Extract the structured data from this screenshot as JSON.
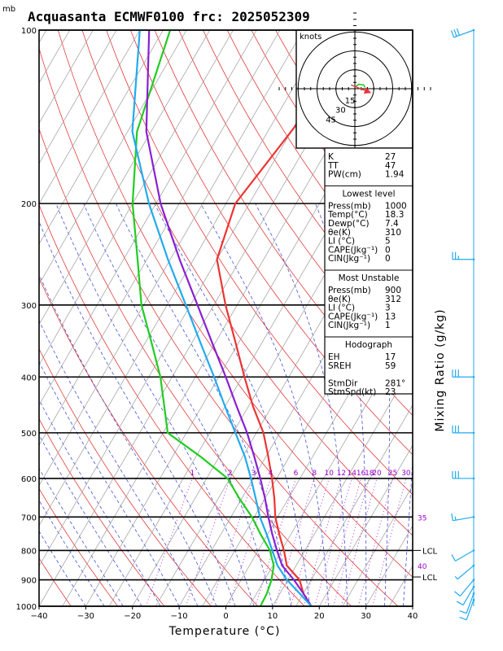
{
  "title": "Acquasanta ECMWF0100  frc: 2025052309",
  "chart_data": {
    "type": "line",
    "title": "Acquasanta ECMWF0100  frc: 2025052309",
    "pressure_unit": "mb",
    "xlabel": "Temperature (°C)",
    "right_label": "Mixing Ratio (g/kg)",
    "xlim": [
      -40,
      40
    ],
    "ylim": [
      1000,
      100
    ],
    "y_log": true,
    "x_ticks": [
      -40,
      -30,
      -20,
      -10,
      0,
      10,
      20,
      30,
      40
    ],
    "y_ticks": [
      100,
      200,
      300,
      400,
      500,
      600,
      700,
      800,
      900,
      1000
    ],
    "y_tick_labels": [
      "100",
      "200",
      "300",
      "400",
      "500",
      "600",
      "700",
      "800",
      "900",
      "1000"
    ],
    "mixing_ratio_labels": [
      "1",
      "2",
      "3",
      "4",
      "6",
      "8",
      "10",
      "12",
      "14",
      "16",
      "18",
      "20",
      "25",
      "30"
    ],
    "mixing_ratio_side_labels": [
      "35",
      "40"
    ],
    "lcl_labels": [
      "LCL",
      "LCL"
    ],
    "series": [
      {
        "color": "#ee3333",
        "points": [
          [
            1000,
            18.3
          ],
          [
            950,
            15.0
          ],
          [
            900,
            12.5
          ],
          [
            850,
            8.0
          ],
          [
            800,
            5.5
          ],
          [
            750,
            2.5
          ],
          [
            700,
            -0.5
          ],
          [
            650,
            -3.0
          ],
          [
            600,
            -6.0
          ],
          [
            550,
            -9.5
          ],
          [
            500,
            -13.5
          ],
          [
            450,
            -19.0
          ],
          [
            400,
            -24.5
          ],
          [
            350,
            -30.5
          ],
          [
            300,
            -37.5
          ],
          [
            250,
            -45.0
          ],
          [
            200,
            -48.0
          ],
          [
            150,
            -45.0
          ],
          [
            100,
            -41.0
          ]
        ]
      },
      {
        "color": "#22cc22",
        "points": [
          [
            1000,
            7.4
          ],
          [
            950,
            7.2
          ],
          [
            900,
            6.5
          ],
          [
            850,
            5.2
          ],
          [
            800,
            2.5
          ],
          [
            750,
            -1.5
          ],
          [
            700,
            -5.5
          ],
          [
            650,
            -10.5
          ],
          [
            600,
            -15.5
          ],
          [
            550,
            -24.0
          ],
          [
            500,
            -34.0
          ],
          [
            450,
            -38.0
          ],
          [
            400,
            -42.5
          ],
          [
            350,
            -48.5
          ],
          [
            300,
            -55.5
          ],
          [
            250,
            -62.0
          ],
          [
            200,
            -70.0
          ],
          [
            150,
            -78.0
          ],
          [
            100,
            -83.5
          ]
        ]
      },
      {
        "color": "#8a1fd1",
        "points": [
          [
            1000,
            18.3
          ],
          [
            950,
            15.0
          ],
          [
            900,
            11.3
          ],
          [
            850,
            7.0
          ],
          [
            800,
            4.0
          ],
          [
            750,
            1.0
          ],
          [
            700,
            -2.0
          ],
          [
            650,
            -5.0
          ],
          [
            600,
            -8.5
          ],
          [
            550,
            -12.5
          ],
          [
            500,
            -17.0
          ],
          [
            450,
            -22.5
          ],
          [
            400,
            -28.5
          ],
          [
            350,
            -35.5
          ],
          [
            300,
            -43.5
          ],
          [
            250,
            -53.0
          ],
          [
            200,
            -64.0
          ],
          [
            150,
            -76.0
          ],
          [
            100,
            -88.0
          ]
        ]
      },
      {
        "color": "#22aaee",
        "points": [
          [
            1000,
            18.3
          ],
          [
            950,
            14.2
          ],
          [
            900,
            9.8
          ],
          [
            850,
            6.0
          ],
          [
            800,
            3.0
          ],
          [
            750,
            -0.2
          ],
          [
            700,
            -3.8
          ],
          [
            650,
            -7.0
          ],
          [
            600,
            -10.5
          ],
          [
            550,
            -14.5
          ],
          [
            500,
            -19.5
          ],
          [
            450,
            -25.0
          ],
          [
            400,
            -31.0
          ],
          [
            350,
            -38.0
          ],
          [
            300,
            -46.0
          ],
          [
            250,
            -55.5
          ],
          [
            200,
            -66.5
          ],
          [
            150,
            -79.0
          ],
          [
            100,
            -90.0
          ]
        ]
      }
    ],
    "wind_barbs": [
      {
        "p": 100,
        "dir": 250,
        "speed": 30
      },
      {
        "p": 250,
        "dir": 270,
        "speed": 25
      },
      {
        "p": 400,
        "dir": 270,
        "speed": 30
      },
      {
        "p": 500,
        "dir": 270,
        "speed": 30
      },
      {
        "p": 600,
        "dir": 270,
        "speed": 30
      },
      {
        "p": 700,
        "dir": 260,
        "speed": 15
      },
      {
        "p": 800,
        "dir": 240,
        "speed": 10
      },
      {
        "p": 850,
        "dir": 230,
        "speed": 5
      },
      {
        "p": 900,
        "dir": 220,
        "speed": 10
      },
      {
        "p": 925,
        "dir": 210,
        "speed": 10
      },
      {
        "p": 950,
        "dir": 200,
        "speed": 10
      },
      {
        "p": 975,
        "dir": 200,
        "speed": 10
      }
    ],
    "hodograph": {
      "unit_label": "knots",
      "ring_labels": [
        "15",
        "30",
        "45"
      ],
      "path": [
        [
          0.5,
          1.5
        ],
        [
          3,
          3.5
        ],
        [
          7,
          3
        ],
        [
          8,
          1
        ]
      ],
      "storm_motion_arrow": [
        [
          -3,
          3
        ],
        [
          12,
          -3
        ]
      ]
    }
  },
  "indices": {
    "general": [
      [
        "K",
        "27"
      ],
      [
        "TT",
        "47"
      ],
      [
        "PW(cm)",
        "1.94"
      ]
    ],
    "lowest_title": "Lowest level",
    "lowest": [
      [
        "Press(mb)",
        "1000"
      ],
      [
        "Temp(°C)",
        "18.3"
      ],
      [
        "Dewp(°C)",
        "7.4"
      ],
      [
        "θe(K)",
        "310"
      ],
      [
        "LI (°C)",
        "5"
      ],
      [
        "CAPE(Jkg⁻¹)",
        "0"
      ],
      [
        "CIN(Jkg⁻¹)",
        "0"
      ]
    ],
    "unstable_title": "Most Unstable",
    "unstable": [
      [
        "Press(mb)",
        "900"
      ],
      [
        "θe(K)",
        "312"
      ],
      [
        "LI (°C)",
        "3"
      ],
      [
        "CAPE(Jkg⁻¹)",
        "13"
      ],
      [
        "CIN(Jkg⁻¹)",
        "1"
      ]
    ],
    "hodo_title": "Hodograph",
    "hodo": [
      [
        "EH",
        "17"
      ],
      [
        "SREH",
        "59"
      ],
      [
        "",
        ""
      ],
      [
        "StmDir",
        "281°"
      ],
      [
        "StmSpd(kt)",
        "23"
      ]
    ]
  }
}
